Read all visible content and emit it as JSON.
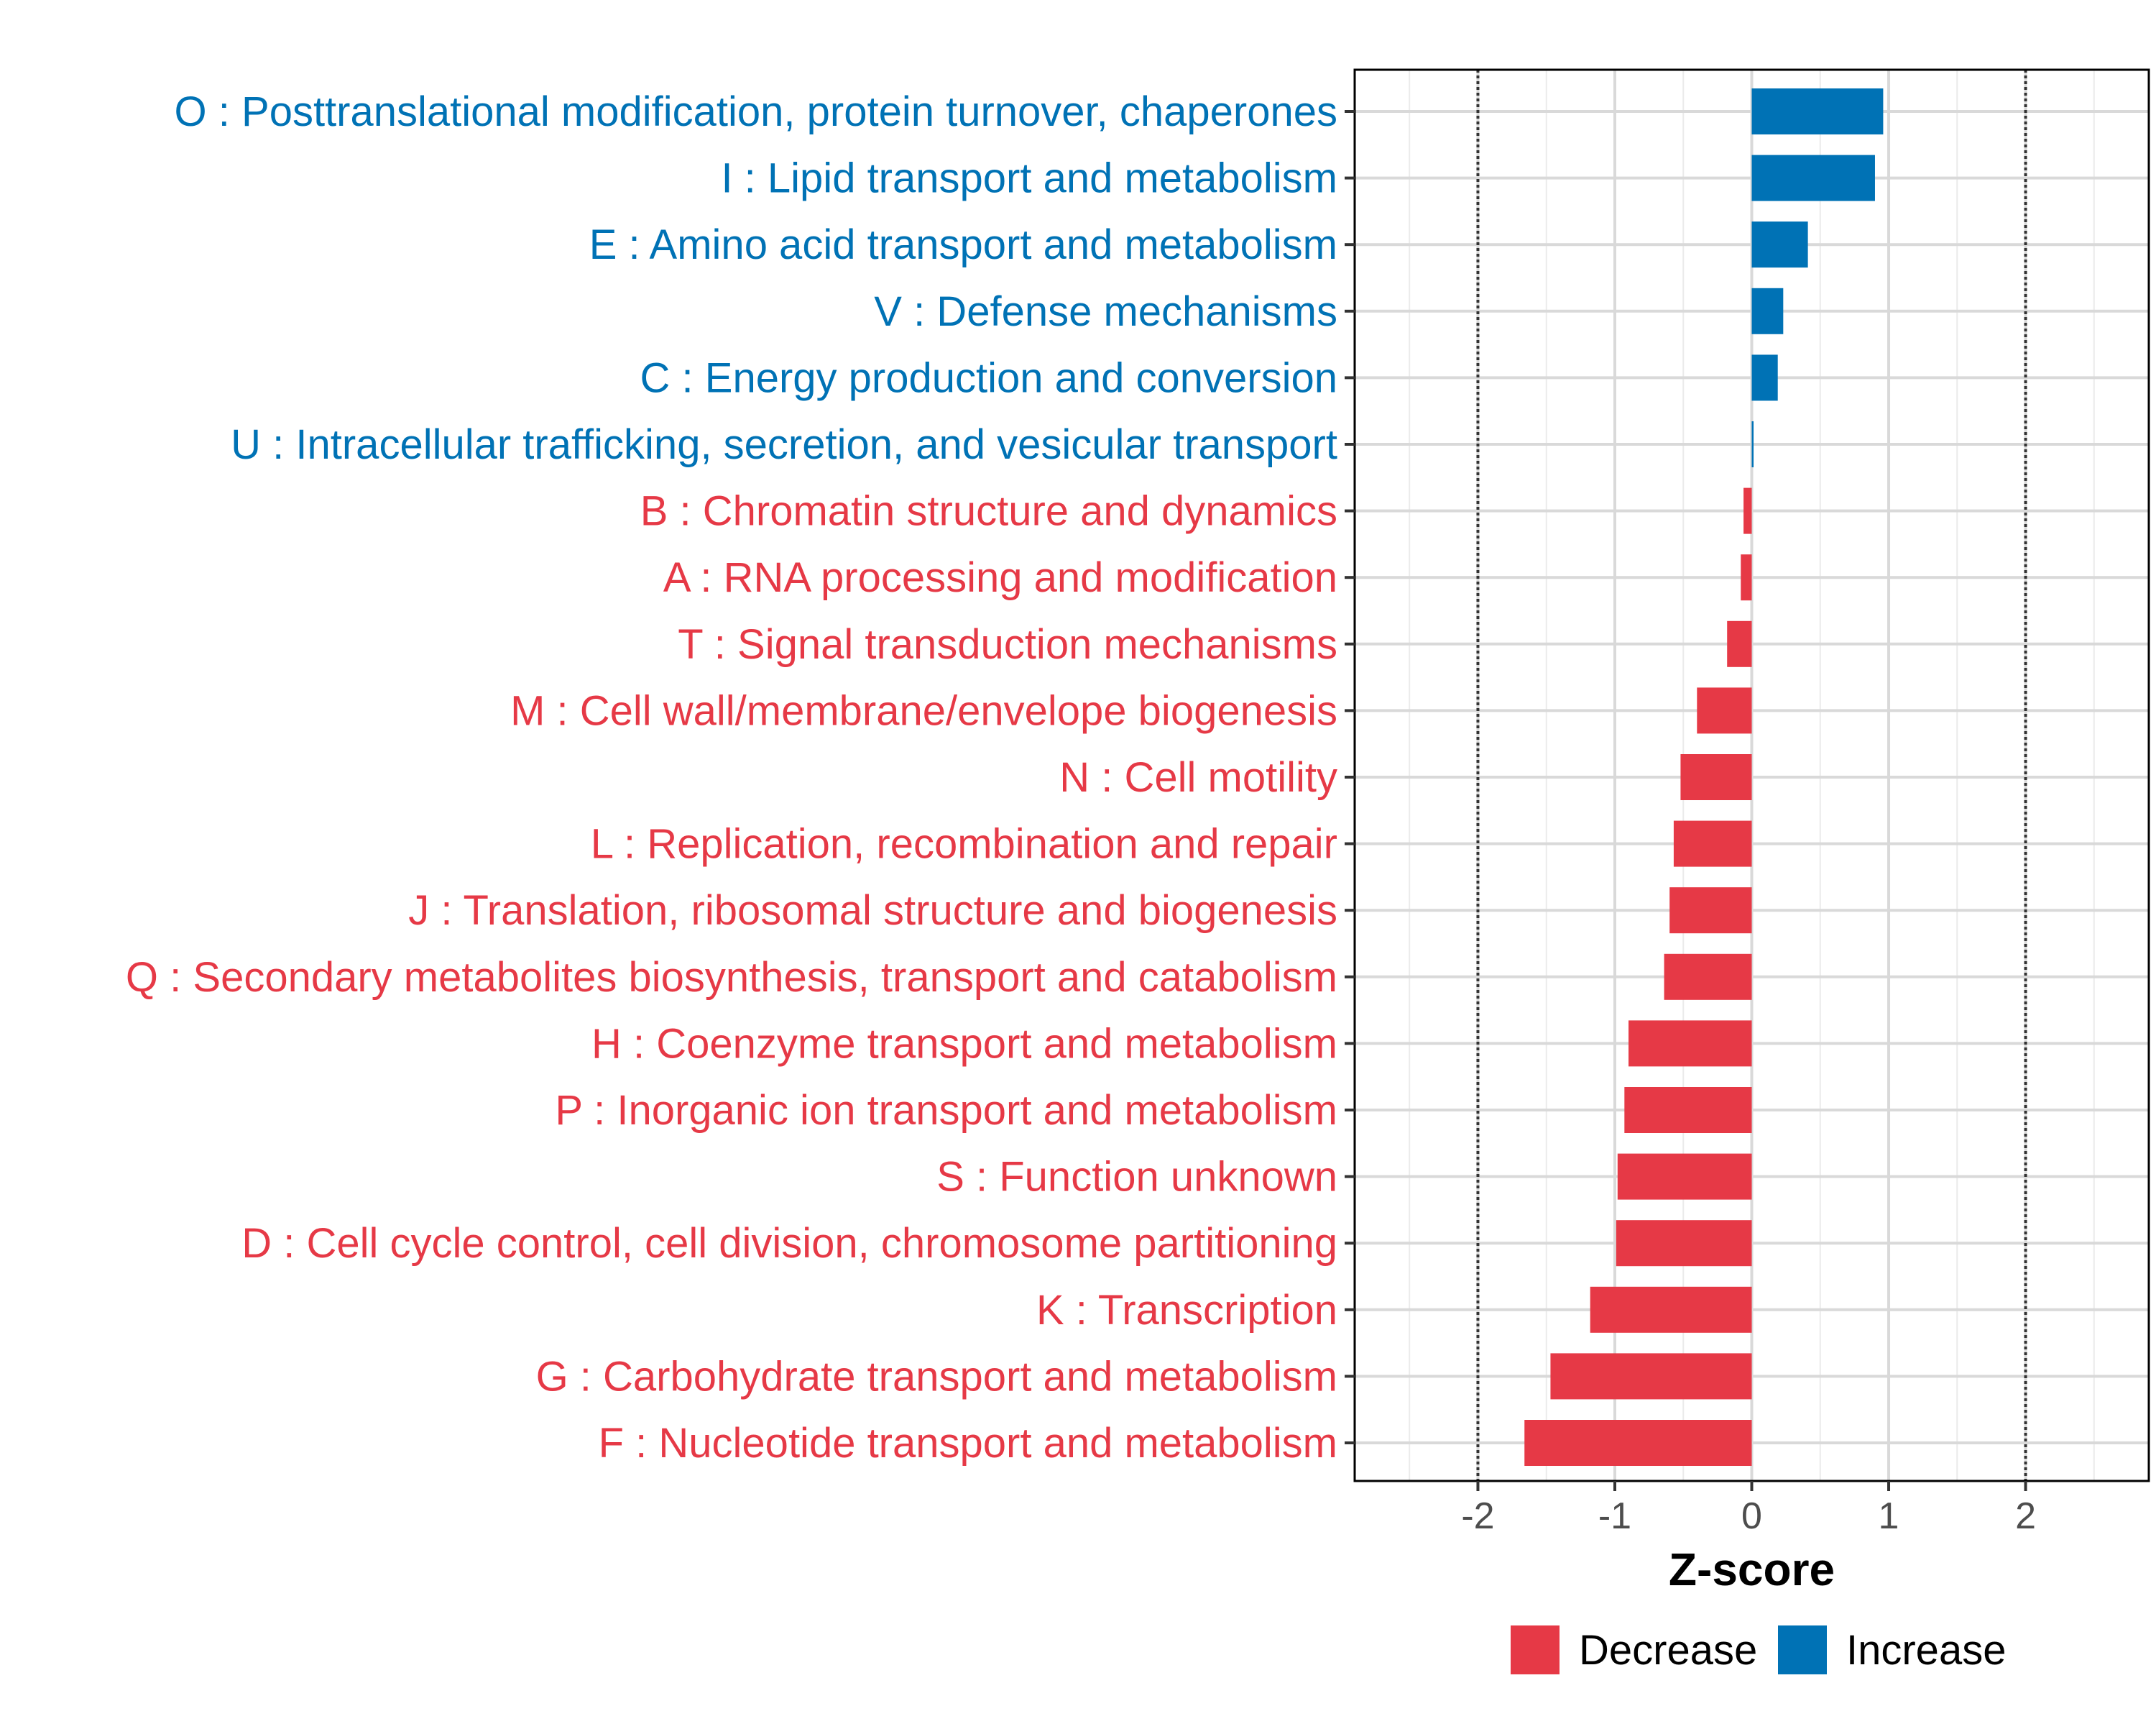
{
  "chart_data": {
    "type": "bar",
    "orientation": "horizontal",
    "title": "",
    "xlabel": "Z-score",
    "ylabel": "",
    "xlim": [
      -2.9,
      2.9
    ],
    "xticks": [
      -2,
      -1,
      0,
      1,
      2
    ],
    "xtick_labels": [
      "-2",
      "-1",
      "0",
      "1",
      "2"
    ],
    "reference_lines": [
      -2,
      2
    ],
    "grid": true,
    "legend_position": "bottom",
    "colors": {
      "Increase": "#0072B5",
      "Decrease": "#E63946"
    },
    "legend": [
      {
        "label": "Decrease",
        "color": "#E63946"
      },
      {
        "label": "Increase",
        "color": "#0072B5"
      }
    ],
    "categories": [
      "O : Posttranslational modification, protein turnover, chaperones",
      "I : Lipid transport and metabolism",
      "E : Amino acid transport and metabolism",
      "V : Defense mechanisms",
      "C : Energy production and conversion",
      "U : Intracellular trafficking, secretion, and vesicular transport",
      "B : Chromatin structure and dynamics",
      "A : RNA processing and modification",
      "T : Signal transduction mechanisms",
      "M : Cell wall/membrane/envelope biogenesis",
      "N : Cell motility",
      "L : Replication, recombination and repair",
      "J : Translation, ribosomal structure and biogenesis",
      "Q : Secondary metabolites biosynthesis, transport and catabolism",
      "H : Coenzyme transport and metabolism",
      "P : Inorganic ion transport and metabolism",
      "S : Function unknown",
      "D : Cell cycle control, cell division, chromosome partitioning",
      "K : Transcription",
      "G : Carbohydrate transport and metabolism",
      "F : Nucleotide transport and metabolism"
    ],
    "values": [
      0.96,
      0.9,
      0.41,
      0.23,
      0.19,
      0.01,
      -0.06,
      -0.08,
      -0.18,
      -0.4,
      -0.52,
      -0.57,
      -0.6,
      -0.64,
      -0.9,
      -0.93,
      -0.98,
      -0.99,
      -1.18,
      -1.47,
      -1.66
    ],
    "groups": [
      "Increase",
      "Increase",
      "Increase",
      "Increase",
      "Increase",
      "Increase",
      "Decrease",
      "Decrease",
      "Decrease",
      "Decrease",
      "Decrease",
      "Decrease",
      "Decrease",
      "Decrease",
      "Decrease",
      "Decrease",
      "Decrease",
      "Decrease",
      "Decrease",
      "Decrease",
      "Decrease"
    ]
  }
}
